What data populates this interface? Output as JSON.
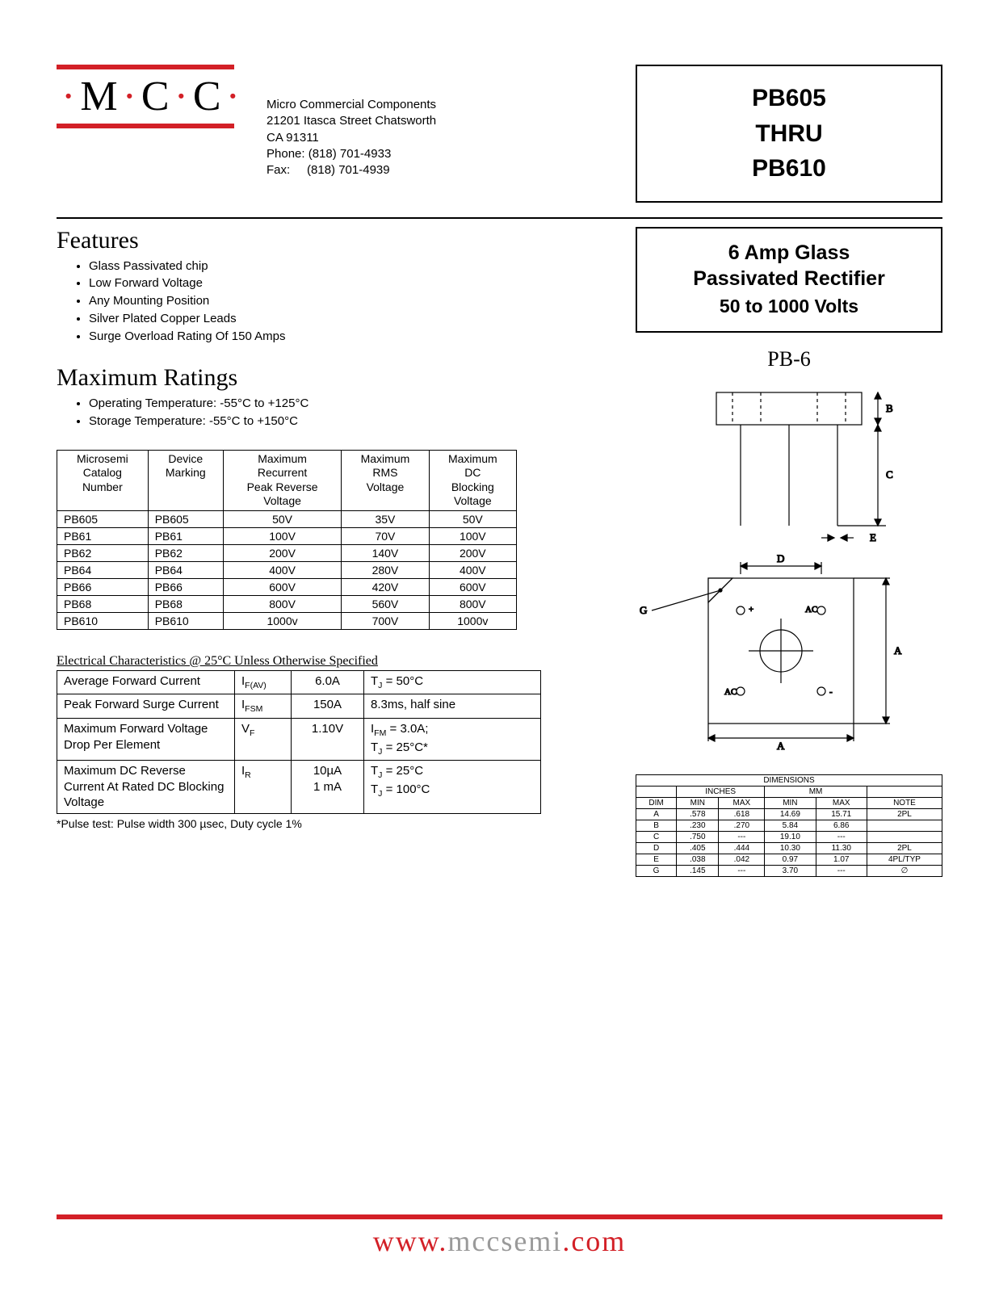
{
  "logo": {
    "text_parts": [
      "M",
      "C",
      "C"
    ],
    "bar_color": "#d32027",
    "dot_color": "#d32027"
  },
  "company": {
    "name": "Micro Commercial Components",
    "addr1": "21201 Itasca Street Chatsworth",
    "addr2": "CA 91311",
    "phone_label": "Phone:",
    "phone": "(818) 701-4933",
    "fax_label": "Fax:",
    "fax": "(818) 701-4939"
  },
  "title_box": {
    "l1": "PB605",
    "l2": "THRU",
    "l3": "PB610"
  },
  "subtitle_box": {
    "l1": "6 Amp Glass",
    "l2": "Passivated Rectifier",
    "l3": "50 to 1000 Volts"
  },
  "features": {
    "heading": "Features",
    "items": [
      "Glass Passivated chip",
      "Low Forward Voltage",
      "Any Mounting Position",
      "Silver Plated Copper Leads",
      "Surge Overload Rating Of 150 Amps"
    ]
  },
  "max_ratings": {
    "heading": "Maximum Ratings",
    "notes": [
      "Operating Temperature: -55°C to +125°C",
      "Storage Temperature: -55°C to +150°C"
    ],
    "columns": [
      "Microsemi Catalog Number",
      "Device Marking",
      "Maximum Recurrent Peak Reverse Voltage",
      "Maximum RMS Voltage",
      "Maximum DC Blocking Voltage"
    ],
    "rows": [
      [
        "PB605",
        "PB605",
        "50V",
        "35V",
        "50V"
      ],
      [
        "PB61",
        "PB61",
        "100V",
        "70V",
        "100V"
      ],
      [
        "PB62",
        "PB62",
        "200V",
        "140V",
        "200V"
      ],
      [
        "PB64",
        "PB64",
        "400V",
        "280V",
        "400V"
      ],
      [
        "PB66",
        "PB66",
        "600V",
        "420V",
        "600V"
      ],
      [
        "PB68",
        "PB68",
        "800V",
        "560V",
        "800V"
      ],
      [
        "PB610",
        "PB610",
        "1000v",
        "700V",
        "1000v"
      ]
    ]
  },
  "elec": {
    "caption": "Electrical Characteristics @ 25°C Unless Otherwise Specified",
    "rows": [
      {
        "param": "Average Forward Current",
        "sym": "I",
        "sub": "F(AV)",
        "val": "6.0A",
        "cond": "T<sub>J</sub> = 50°C"
      },
      {
        "param": "Peak Forward Surge Current",
        "sym": "I",
        "sub": "FSM",
        "val": "150A",
        "cond": "8.3ms, half sine"
      },
      {
        "param": "Maximum Forward Voltage Drop Per Element",
        "sym": "V",
        "sub": "F",
        "val": "1.10V",
        "cond": "I<sub>FM</sub> = 3.0A;<br>T<sub>J</sub> = 25°C*"
      },
      {
        "param": "Maximum DC Reverse Current At Rated DC Blocking Voltage",
        "sym": "I",
        "sub": "R",
        "val": "10µA<br>1 mA",
        "cond": "T<sub>J</sub> = 25°C<br>T<sub>J</sub> = 100°C"
      }
    ],
    "footnote": "*Pulse test: Pulse width 300 µsec, Duty cycle 1%"
  },
  "package": {
    "label": "PB-6",
    "dim_labels": {
      "A": "A",
      "B": "B",
      "C": "C",
      "D": "D",
      "E": "E",
      "G": "G"
    },
    "pin_labels": {
      "plus": "+",
      "minus": "-",
      "ac": "AC"
    }
  },
  "dimensions": {
    "title": "DIMENSIONS",
    "group_inches": "INCHES",
    "group_mm": "MM",
    "cols": [
      "DIM",
      "MIN",
      "MAX",
      "MIN",
      "MAX",
      "NOTE"
    ],
    "rows": [
      [
        "A",
        ".578",
        ".618",
        "14.69",
        "15.71",
        "2PL"
      ],
      [
        "B",
        ".230",
        ".270",
        "5.84",
        "6.86",
        ""
      ],
      [
        "C",
        ".750",
        "---",
        "19.10",
        "---",
        ""
      ],
      [
        "D",
        ".405",
        ".444",
        "10.30",
        "11.30",
        "2PL"
      ],
      [
        "E",
        ".038",
        ".042",
        "0.97",
        "1.07",
        "4PL/TYP"
      ],
      [
        "G",
        ".145",
        "---",
        "3.70",
        "---",
        "∅"
      ]
    ]
  },
  "footer": {
    "part1": "www.",
    "part2": "mccsemi",
    "part3": ".com",
    "bar_color": "#d32027"
  }
}
